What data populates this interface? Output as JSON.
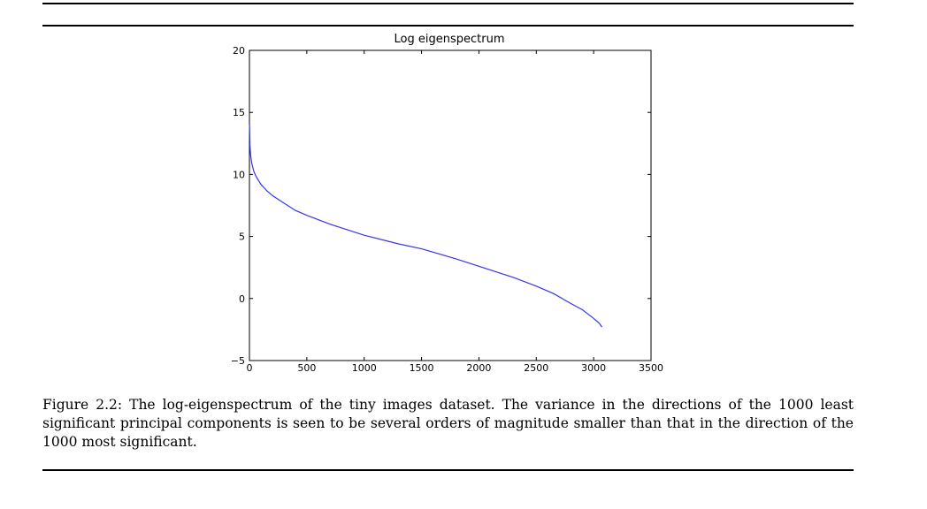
{
  "chart_data": {
    "type": "line",
    "title": "Log eigenspectrum",
    "xlabel": "",
    "ylabel": "",
    "xlim": [
      0,
      3500
    ],
    "ylim": [
      -5,
      20
    ],
    "x_ticks": [
      0,
      500,
      1000,
      1500,
      2000,
      2500,
      3000,
      3500
    ],
    "y_ticks": [
      -5,
      0,
      5,
      10,
      15,
      20
    ],
    "grid": false,
    "series": [
      {
        "color": "#3333ff",
        "x": [
          1,
          5,
          10,
          20,
          40,
          60,
          100,
          150,
          200,
          300,
          400,
          500,
          700,
          1000,
          1300,
          1500,
          1800,
          2000,
          2300,
          2500,
          2650,
          2800,
          2900,
          3000,
          3050,
          3072
        ],
        "y": [
          14.0,
          12.3,
          11.6,
          10.9,
          10.2,
          9.8,
          9.2,
          8.7,
          8.3,
          7.7,
          7.1,
          6.7,
          6.0,
          5.1,
          4.4,
          4.0,
          3.2,
          2.6,
          1.7,
          1.0,
          0.4,
          -0.4,
          -0.9,
          -1.6,
          -2.0,
          -2.3
        ]
      }
    ]
  },
  "caption": {
    "label": "Figure 2.2:",
    "text": "The log-eigenspectrum of the tiny images dataset. The variance in the directions of the 1000 least significant principal components is seen to be several orders of magnitude smaller than that in the direction of the 1000 most significant."
  }
}
